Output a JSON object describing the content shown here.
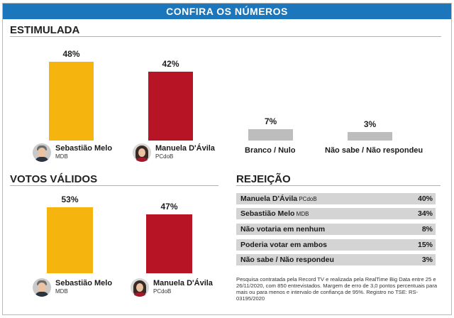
{
  "banner": "CONFIRA OS NÚMEROS",
  "colors": {
    "banner": "#1c76bb",
    "melo": "#f6b40e",
    "manuela": "#b71426",
    "neutral": "#bdbdbd"
  },
  "candidates": {
    "melo": {
      "name": "Sebastião Melo",
      "party": "MDB"
    },
    "manuela": {
      "name": "Manuela D'Ávila",
      "party": "PCdoB"
    }
  },
  "chart_data": [
    {
      "type": "bar",
      "title": "ESTIMULADA",
      "categories": [
        "Sebastião Melo",
        "Manuela D'Ávila",
        "Branco / Nulo",
        "Não sabe / Não respondeu"
      ],
      "values": [
        48,
        42,
        7,
        3
      ],
      "value_labels": [
        "48%",
        "42%",
        "7%",
        "3%"
      ],
      "ylim": [
        0,
        50
      ]
    },
    {
      "type": "bar",
      "title": "VOTOS VÁLIDOS",
      "categories": [
        "Sebastião Melo",
        "Manuela D'Ávila"
      ],
      "values": [
        53,
        47
      ],
      "value_labels": [
        "53%",
        "47%"
      ],
      "ylim": [
        0,
        55
      ]
    },
    {
      "type": "table",
      "title": "REJEIÇÃO",
      "rows": [
        {
          "label": "Manuela D'Ávila",
          "party": "PCdoB",
          "value": 40,
          "value_label": "40%"
        },
        {
          "label": "Sebastião Melo",
          "party": "MDB",
          "value": 34,
          "value_label": "34%"
        },
        {
          "label": "Não votaria em nenhum",
          "party": "",
          "value": 8,
          "value_label": "8%"
        },
        {
          "label": "Poderia votar em ambos",
          "party": "",
          "value": 15,
          "value_label": "15%"
        },
        {
          "label": "Não sabe / Não respondeu",
          "party": "",
          "value": 3,
          "value_label": "3%"
        }
      ]
    }
  ],
  "footnote": "Pesquisa contratada pela Record TV e realizada pela RealTime Big Data entre 25 e 26/11/2020, com 850 entrevistados. Margem de erro de 3,0 pontos percentuais para mais ou para menos e intervalo de confiança de 95%. Registro no TSE: RS-03195/2020"
}
